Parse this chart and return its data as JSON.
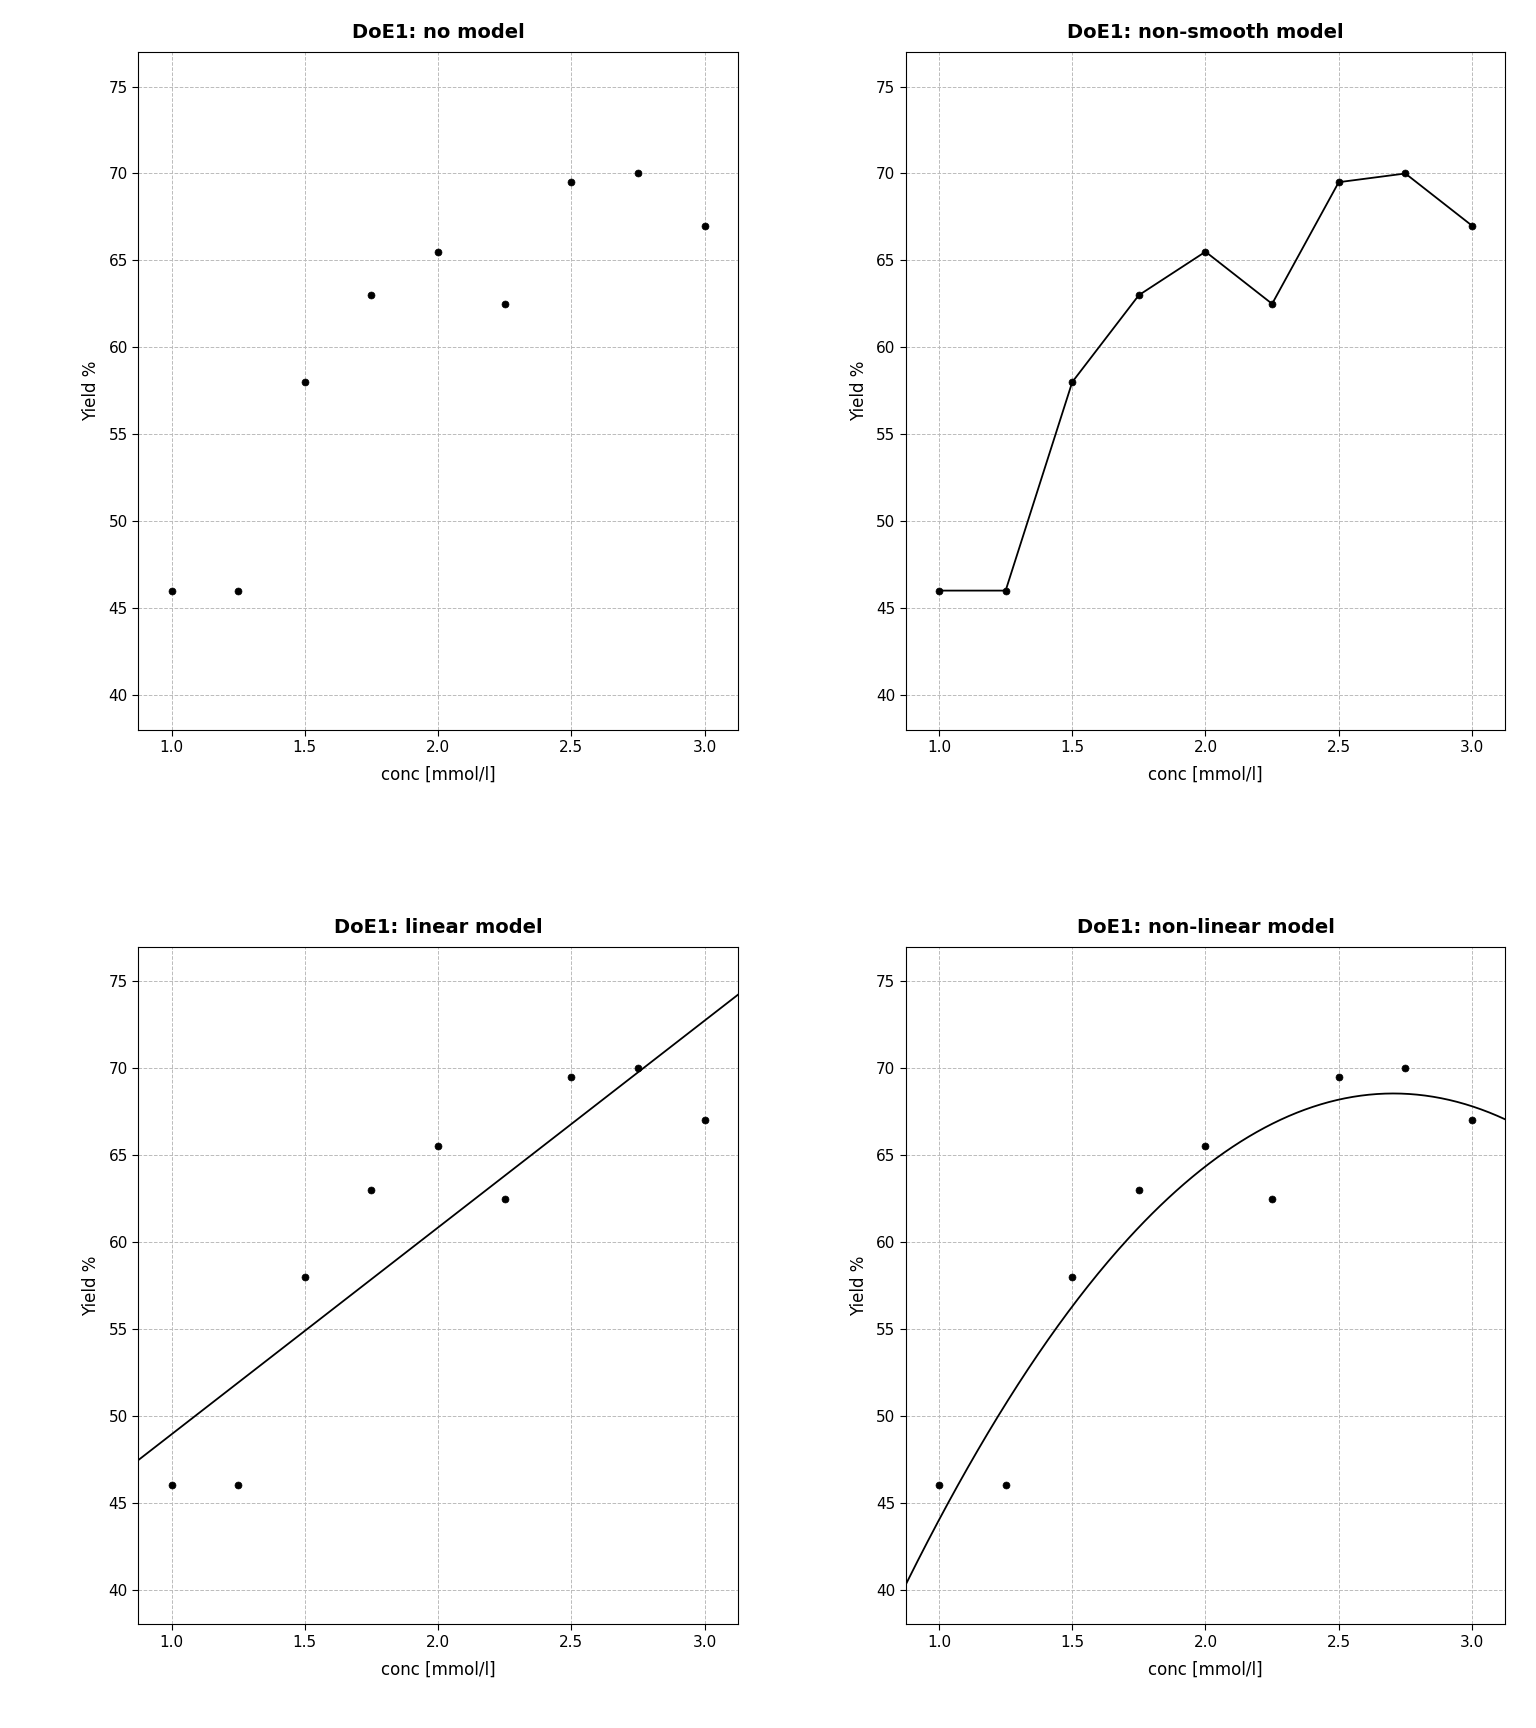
{
  "x": [
    1.0,
    1.25,
    1.5,
    1.75,
    2.0,
    2.25,
    2.5,
    2.75,
    3.0
  ],
  "y": [
    46.0,
    46.0,
    58.0,
    63.0,
    65.5,
    62.5,
    69.5,
    70.0,
    67.0
  ],
  "titles": [
    "DoE1: no model",
    "DoE1: non-smooth model",
    "DoE1: linear model",
    "DoE1: non-linear model"
  ],
  "xlabel": "conc [mmol/l]",
  "ylabel": "Yield %",
  "ylim": [
    38,
    77
  ],
  "xlim": [
    0.875,
    3.125
  ],
  "yticks": [
    40,
    45,
    50,
    55,
    60,
    65,
    70,
    75
  ],
  "xticks": [
    1.0,
    1.5,
    2.0,
    2.5,
    3.0
  ],
  "background": "#ffffff",
  "point_color": "#000000",
  "line_color": "#000000",
  "grid_color": "#bbbbbb",
  "title_fontsize": 14,
  "label_fontsize": 12,
  "tick_fontsize": 11,
  "point_size": 5,
  "linewidth": 1.3
}
